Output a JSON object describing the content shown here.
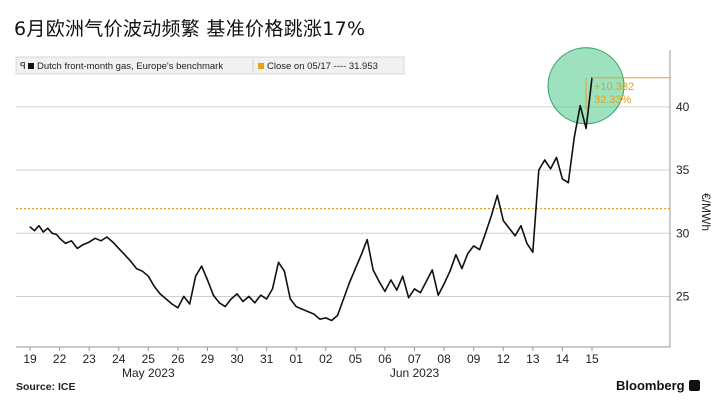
{
  "title": "6月欧洲气价波动频繁 基准价格跳涨17%",
  "source": "Source: ICE",
  "brand": "Bloomberg",
  "chart_data": {
    "type": "line",
    "ylabel": "€/MWh",
    "ylim": [
      21,
      44.5
    ],
    "yticks": [
      25,
      30,
      35,
      40
    ],
    "grid": true,
    "x_tick_labels": [
      "19",
      "22",
      "23",
      "24",
      "25",
      "26",
      "29",
      "30",
      "31",
      "01",
      "02",
      "05",
      "06",
      "07",
      "08",
      "09",
      "12",
      "13",
      "14",
      "15"
    ],
    "month_labels": [
      {
        "label": "May 2023",
        "at": "25"
      },
      {
        "label": "Jun 2023",
        "at": "07"
      }
    ],
    "legend": {
      "series_label": "Dutch front-month gas, Europe's benchmark",
      "close_label": "Close on 05/17 ---- 31.953"
    },
    "reference_value": 31.953,
    "annotation": {
      "change": "+10.332",
      "percent": "32.33%"
    },
    "colors": {
      "series": "#111111",
      "reference": "#e5a21a",
      "highlight": "#4cc98a",
      "grid": "#d0d0d0"
    },
    "series": [
      {
        "name": "Dutch front-month gas, Europe's benchmark",
        "x": [
          0,
          0.15,
          0.3,
          0.45,
          0.6,
          0.75,
          0.9,
          1,
          1.2,
          1.4,
          1.6,
          1.8,
          2,
          2.2,
          2.4,
          2.6,
          2.8,
          3,
          3.2,
          3.4,
          3.6,
          3.8,
          4,
          4.2,
          4.4,
          4.6,
          4.8,
          5,
          5.2,
          5.4,
          5.6,
          5.8,
          6,
          6.2,
          6.4,
          6.6,
          6.8,
          7,
          7.2,
          7.4,
          7.6,
          7.8,
          8,
          8.2,
          8.4,
          8.6,
          8.8,
          9,
          9.2,
          9.4,
          9.6,
          9.8,
          10,
          10.2,
          10.4,
          10.6,
          10.8,
          11,
          11.2,
          11.4,
          11.6,
          11.8,
          12,
          12.2,
          12.4,
          12.6,
          12.8,
          13,
          13.2,
          13.4,
          13.6,
          13.8,
          14,
          14.2,
          14.4,
          14.6,
          14.8,
          15,
          15.2,
          15.4,
          15.6,
          15.8,
          16,
          16.2,
          16.4,
          16.6,
          16.8,
          17,
          17.2,
          17.4,
          17.6,
          17.8,
          18,
          18.2,
          18.4,
          18.6,
          18.8,
          19
        ],
        "y": [
          30.5,
          30.2,
          30.6,
          30.1,
          30.4,
          30.0,
          29.9,
          29.6,
          29.2,
          29.4,
          28.8,
          29.1,
          29.3,
          29.6,
          29.4,
          29.7,
          29.3,
          28.8,
          28.3,
          27.8,
          27.2,
          27.0,
          26.6,
          25.8,
          25.2,
          24.8,
          24.4,
          24.1,
          25.0,
          24.4,
          26.6,
          27.4,
          26.3,
          25.1,
          24.5,
          24.2,
          24.8,
          25.2,
          24.6,
          25.0,
          24.5,
          25.1,
          24.8,
          25.6,
          27.7,
          27.0,
          24.8,
          24.2,
          24.0,
          23.8,
          23.6,
          23.2,
          23.3,
          23.1,
          23.5,
          24.8,
          26.1,
          27.2,
          28.3,
          29.5,
          27.1,
          26.2,
          25.4,
          26.3,
          25.5,
          26.6,
          24.9,
          25.6,
          25.3,
          26.2,
          27.1,
          25.1,
          26.0,
          27.0,
          28.3,
          27.2,
          28.4,
          29.0,
          28.7,
          30.0,
          31.4,
          33.0,
          31.0,
          30.4,
          29.8,
          30.6,
          29.2,
          28.5,
          35.0,
          35.8,
          35.1,
          36.0,
          34.3,
          34.0,
          37.6,
          40.1,
          38.3,
          42.3
        ]
      }
    ]
  }
}
